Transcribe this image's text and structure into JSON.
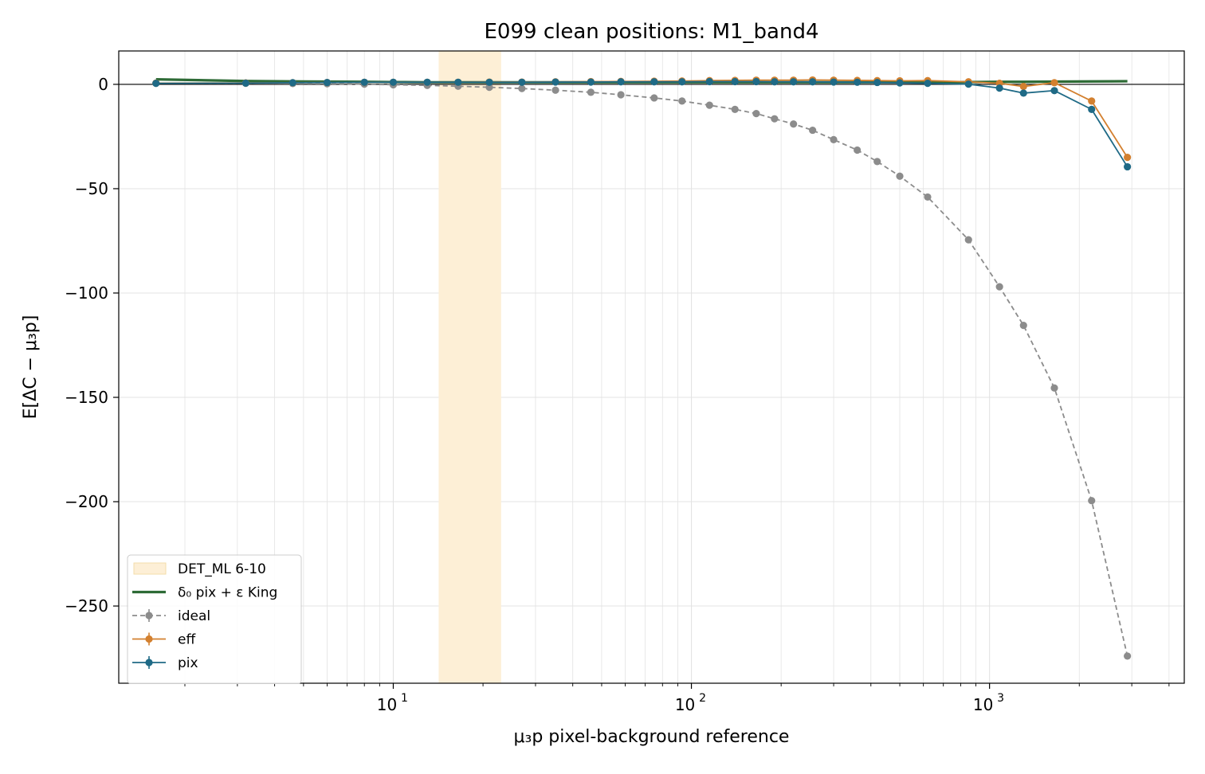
{
  "chart_data": {
    "type": "line",
    "title": "E099 clean positions: M1_band4",
    "xlabel": "μ₃p pixel-background reference",
    "ylabel": "E[ΔC − μ₃p]",
    "xscale": "log",
    "xlim": [
      1.2,
      4500
    ],
    "ylim": [
      -287,
      16
    ],
    "x_ticks": [
      {
        "value": 10,
        "base": "10",
        "exp": "1"
      },
      {
        "value": 100,
        "base": "10",
        "exp": "2"
      },
      {
        "value": 1000,
        "base": "10",
        "exp": "3"
      }
    ],
    "y_ticks": [
      {
        "value": 0,
        "label": "0"
      },
      {
        "value": -50,
        "label": "−50"
      },
      {
        "value": -100,
        "label": "−100"
      },
      {
        "value": -150,
        "label": "−150"
      },
      {
        "value": -200,
        "label": "−200"
      },
      {
        "value": -250,
        "label": "−250"
      }
    ],
    "grid": true,
    "legend_position": "lower-left",
    "band": {
      "name": "DET_ML 6-10",
      "x0": 14.2,
      "x1": 23,
      "color": "#fdefd6"
    },
    "series": [
      {
        "name": "δ₀ pix + ε King",
        "style": "solid",
        "markers": false,
        "color": "#2e6b36",
        "x": [
          1.6,
          3.2,
          4.6,
          6,
          8,
          10,
          13,
          16.5,
          21,
          27,
          35,
          46,
          58,
          75,
          93,
          115,
          140,
          165,
          190,
          220,
          255,
          300,
          360,
          420,
          500,
          620,
          850,
          1080,
          1300,
          1650,
          2200,
          2900
        ],
        "y": [
          2.4,
          1.6,
          1.4,
          1.3,
          1.2,
          1.1,
          1.0,
          1.0,
          1.0,
          1.0,
          1.0,
          1.0,
          1.0,
          1.0,
          1.0,
          1.0,
          1.0,
          1.0,
          1.0,
          1.0,
          1.0,
          1.0,
          1.0,
          1.0,
          1.0,
          1.1,
          1.1,
          1.2,
          1.2,
          1.3,
          1.4,
          1.5
        ]
      },
      {
        "name": "ideal",
        "style": "dashed",
        "markers": true,
        "color": "#8c8c8c",
        "x": [
          1.6,
          3.2,
          4.6,
          6,
          8,
          10,
          13,
          16.5,
          21,
          27,
          35,
          46,
          58,
          75,
          93,
          115,
          140,
          165,
          190,
          220,
          255,
          300,
          360,
          420,
          500,
          620,
          850,
          1080,
          1300,
          1650,
          2200,
          2900
        ],
        "y": [
          0.5,
          0.5,
          0.4,
          0.3,
          0.1,
          -0.2,
          -0.5,
          -0.9,
          -1.4,
          -2.0,
          -2.8,
          -3.8,
          -5.0,
          -6.5,
          -8.0,
          -10.0,
          -12.0,
          -14.0,
          -16.5,
          -19.0,
          -22.0,
          -26.5,
          -31.5,
          -37.0,
          -44.0,
          -54.0,
          -74.5,
          -97.0,
          -115.5,
          -145.5,
          -199.5,
          -274.0
        ]
      },
      {
        "name": "eff",
        "style": "solid",
        "markers": true,
        "color": "#d3802f",
        "x": [
          1.6,
          3.2,
          4.6,
          6,
          8,
          10,
          13,
          16.5,
          21,
          27,
          35,
          46,
          58,
          75,
          93,
          115,
          140,
          165,
          190,
          220,
          255,
          300,
          360,
          420,
          500,
          620,
          850,
          1080,
          1300,
          1650,
          2200,
          2900
        ],
        "y": [
          0.6,
          0.7,
          0.8,
          0.9,
          1.0,
          1.0,
          1.0,
          1.0,
          1.1,
          1.1,
          1.2,
          1.3,
          1.4,
          1.5,
          1.6,
          1.8,
          1.9,
          2.0,
          2.0,
          2.0,
          2.1,
          2.0,
          1.9,
          1.8,
          1.7,
          1.8,
          1.2,
          0.5,
          -1.0,
          0.8,
          -8.0,
          -35.0
        ]
      },
      {
        "name": "pix",
        "style": "solid",
        "markers": true,
        "color": "#1f6a86",
        "x": [
          1.6,
          3.2,
          4.6,
          6,
          8,
          10,
          13,
          16.5,
          21,
          27,
          35,
          46,
          58,
          75,
          93,
          115,
          140,
          165,
          190,
          220,
          255,
          300,
          360,
          420,
          500,
          620,
          850,
          1080,
          1300,
          1650,
          2200,
          2900
        ],
        "y": [
          0.5,
          0.6,
          0.8,
          0.9,
          1.0,
          1.0,
          1.0,
          1.0,
          1.0,
          1.0,
          1.1,
          1.1,
          1.2,
          1.2,
          1.2,
          1.3,
          1.3,
          1.3,
          1.2,
          1.2,
          1.2,
          1.1,
          1.0,
          0.9,
          0.7,
          0.5,
          0.1,
          -1.8,
          -4.2,
          -3.0,
          -12.0,
          -39.5
        ]
      }
    ]
  }
}
